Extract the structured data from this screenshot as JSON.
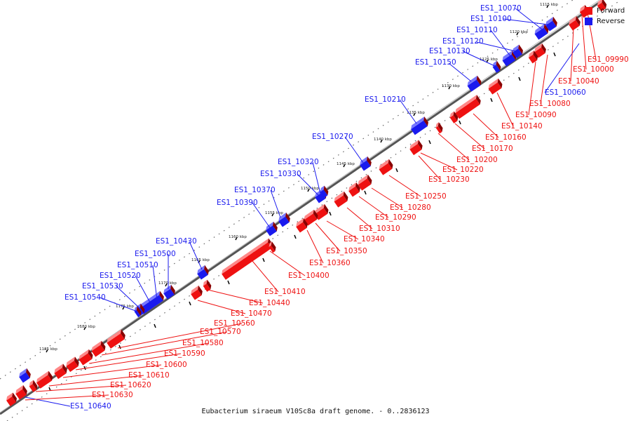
{
  "colors": {
    "forward": "#ee1111",
    "reverse": "#1a1aee",
    "axis": "#888888"
  },
  "legend": {
    "forward": "Forward",
    "reverse": "Reverse"
  },
  "caption": "Eubacterium siraeum V10Sc8a draft genome. - 0..2836123",
  "ticks": [
    "1115 kbp",
    "1120 kbp",
    "1125 kbp",
    "1130 kbp",
    "1135 kbp",
    "1140 kbp",
    "1145 kbp",
    "1150 kbp",
    "1155 kbp",
    "1160 kbp",
    "1165 kbp",
    "1170 kbp",
    "1175 kbp",
    "1180 kbp",
    "1185 kbp"
  ],
  "reverse_labels": [
    "ES1_10070",
    "ES1_10100",
    "ES1_10110",
    "ES1_10120",
    "ES1_10130",
    "ES1_10150",
    "ES1_10210",
    "ES1_10270",
    "ES1_10320",
    "ES1_10330",
    "ES1_10370",
    "ES1_10390",
    "ES1_10430",
    "ES1_10500",
    "ES1_10510",
    "ES1_10520",
    "ES1_10530",
    "ES1_10540",
    "ES1_10060",
    "ES1_10640"
  ],
  "forward_labels": [
    "ES1_09990",
    "ES1_10000",
    "ES1_10040",
    "ES1_10080",
    "ES1_10090",
    "ES1_10140",
    "ES1_10160",
    "ES1_10170",
    "ES1_10200",
    "ES1_10220",
    "ES1_10230",
    "ES1_10250",
    "ES1_10280",
    "ES1_10290",
    "ES1_10310",
    "ES1_10340",
    "ES1_10350",
    "ES1_10360",
    "ES1_10400",
    "ES1_10410",
    "ES1_10440",
    "ES1_10470",
    "ES1_10560",
    "ES1_10570",
    "ES1_10580",
    "ES1_10590",
    "ES1_10600",
    "ES1_10610",
    "ES1_10620",
    "ES1_10630"
  ]
}
